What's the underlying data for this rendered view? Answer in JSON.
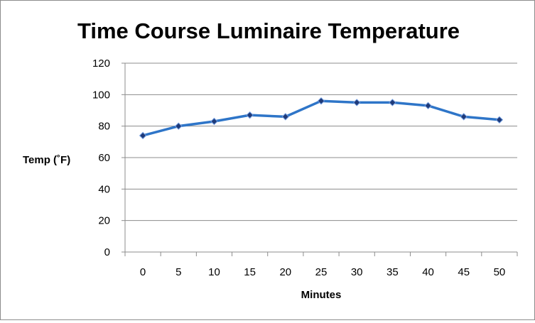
{
  "chart_data": {
    "type": "line",
    "title": "Time Course Luminaire Temperature",
    "xlabel": "Minutes",
    "ylabel": "Temp (˚F)",
    "categories": [
      "0",
      "5",
      "10",
      "15",
      "20",
      "25",
      "30",
      "35",
      "40",
      "45",
      "50"
    ],
    "series": [
      {
        "name": "",
        "values": [
          74,
          80,
          83,
          87,
          86,
          96,
          95,
          95,
          93,
          86,
          84
        ]
      }
    ],
    "ylim": [
      0,
      120
    ],
    "yticks": [
      "0",
      "20",
      "40",
      "60",
      "80",
      "100",
      "120"
    ],
    "grid": true,
    "legend": "none",
    "colors": {
      "line": "#2e75c8",
      "marker": "#1f3a78",
      "grid": "#8c8c8c"
    }
  }
}
